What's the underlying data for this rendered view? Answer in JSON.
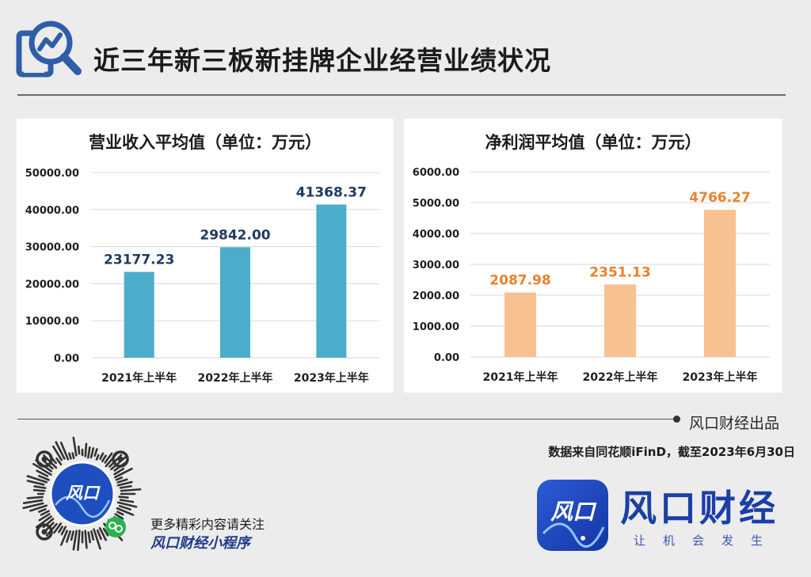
{
  "header": {
    "title": "近三年新三板新挂牌企业经营业绩状况"
  },
  "chart_data": [
    {
      "type": "bar",
      "title": "营业收入平均值（单位：万元）",
      "categories": [
        "2021年上半年",
        "2022年上半年",
        "2023年上半年"
      ],
      "values": [
        23177.23,
        29842.0,
        41368.37
      ],
      "value_labels": [
        "23177.23",
        "29842.00",
        "41368.37"
      ],
      "ylim": [
        0,
        50000
      ],
      "yticks": [
        "0.00",
        "10000.00",
        "20000.00",
        "30000.00",
        "40000.00",
        "50000.00"
      ],
      "bar_color": "#4badc9",
      "label_color": "#1f3b5e",
      "grid": true
    },
    {
      "type": "bar",
      "title": "净利润平均值（单位：万元）",
      "categories": [
        "2021年上半年",
        "2022年上半年",
        "2023年上半年"
      ],
      "values": [
        2087.98,
        2351.13,
        4766.27
      ],
      "value_labels": [
        "2087.98",
        "2351.13",
        "4766.27"
      ],
      "ylim": [
        0,
        6000
      ],
      "yticks": [
        "0.00",
        "1000.00",
        "2000.00",
        "3000.00",
        "4000.00",
        "5000.00",
        "6000.00"
      ],
      "bar_color": "#f8c192",
      "label_color": "#e8822e",
      "grid": true
    }
  ],
  "footer": {
    "producer": "风口财经出品",
    "source": "数据来自同花顺iFinD，截至2023年6月30日",
    "promo_line1": "更多精彩内容请关注",
    "promo_line2": "风口财经小程序",
    "brand_name": "风口财经",
    "brand_slogan": "让机会发生",
    "qr_logo_text": "风口",
    "brand_icon_text": "风口"
  },
  "colors": {
    "brand": "#1a3fa6",
    "accent": "#4badc9"
  },
  "icons": {
    "header": "chart-search-icon",
    "qr": "qr-code-icon",
    "brand": "brand-logo-icon"
  }
}
